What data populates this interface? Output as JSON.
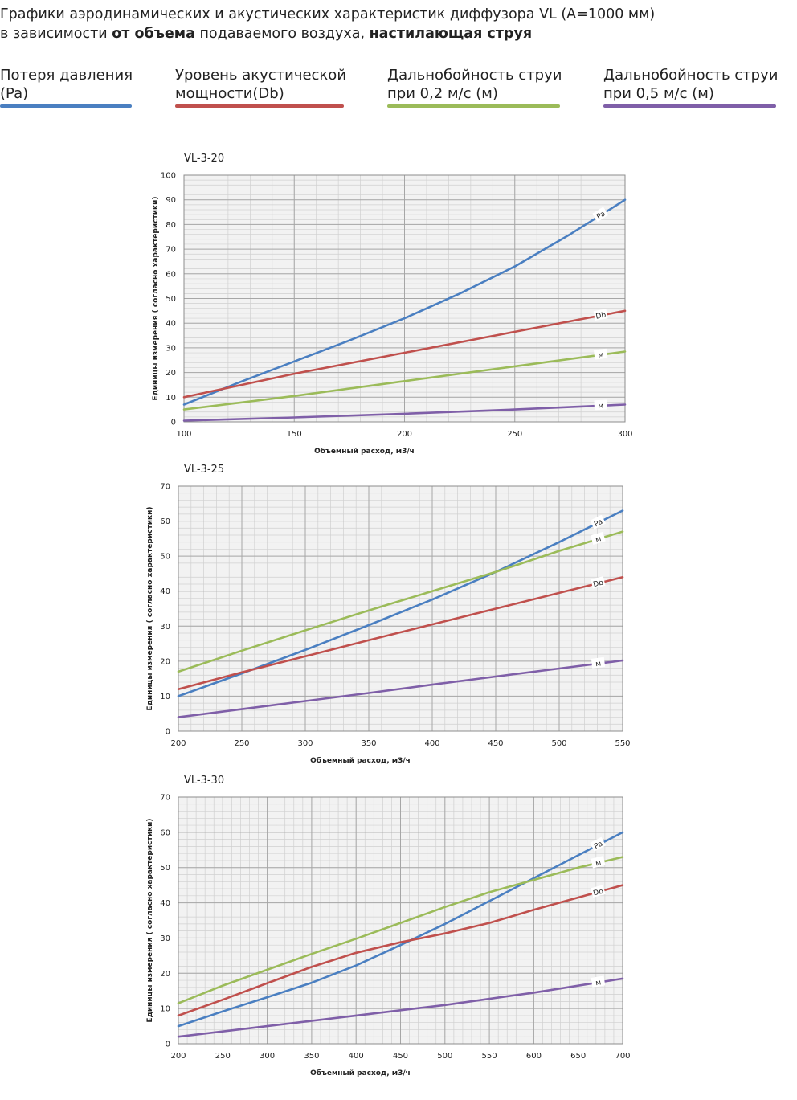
{
  "header": {
    "line1": "Графики аэродинамических и акустических характеристик  диффузора VL (А=1000 мм)",
    "line2_a": "в зависимости ",
    "line2_b": "от объема",
    "line2_c": " подаваемого воздуха, ",
    "line2_d": "настилающая струя"
  },
  "legend": [
    {
      "label": "Потеря давления\n(Pa)",
      "color": "#4a7fc1"
    },
    {
      "label": "Уровень акустической\nмощности(Db)",
      "color": "#c0504d"
    },
    {
      "label": "Дальнобойность струи\nпри 0,2 м/с (м)",
      "color": "#9bbb59"
    },
    {
      "label": "Дальнобойность струи\nпри 0,5 м/с (м)",
      "color": "#7f5fa8"
    }
  ],
  "colors": {
    "pa": "#4a7fc1",
    "db": "#c0504d",
    "m02": "#9bbb59",
    "m05": "#7f5fa8",
    "grid_major": "#a6a6a6",
    "grid_minor": "#d0d0d0",
    "plot_bg": "#f2f2f2"
  },
  "chart_data": [
    {
      "type": "line",
      "title": "VL-3-20",
      "xlabel": "Объемный расход, м3/ч",
      "ylabel": "Единицы измерения ( согласно характеристики)",
      "xlim": [
        100,
        300
      ],
      "ylim": [
        0,
        100
      ],
      "xticks": [
        100,
        150,
        200,
        250,
        300
      ],
      "yticks": [
        0,
        10,
        20,
        30,
        40,
        50,
        60,
        70,
        80,
        90,
        100
      ],
      "x_minor_step": 10,
      "y_minor_step": 2,
      "series": [
        {
          "name": "Pa",
          "key": "pa",
          "x": [
            100,
            125,
            150,
            175,
            200,
            225,
            250,
            275,
            300
          ],
          "y": [
            7,
            16,
            24.5,
            33,
            42,
            52,
            63,
            76,
            90
          ]
        },
        {
          "name": "Db",
          "key": "db",
          "x": [
            100,
            150,
            200,
            250,
            300
          ],
          "y": [
            10,
            19.5,
            28,
            36.5,
            45
          ]
        },
        {
          "name": "м",
          "key": "m02",
          "x": [
            100,
            150,
            200,
            250,
            300
          ],
          "y": [
            5,
            10.5,
            16.5,
            22.5,
            28.5
          ]
        },
        {
          "name": "м",
          "key": "m05",
          "x": [
            100,
            150,
            200,
            250,
            300
          ],
          "y": [
            0.5,
            1.8,
            3.3,
            5,
            7
          ]
        }
      ]
    },
    {
      "type": "line",
      "title": "VL-3-25",
      "xlabel": "Объемный расход, м3/ч",
      "ylabel": "Единицы измерения ( согласно характеристики)",
      "xlim": [
        200,
        550
      ],
      "ylim": [
        0,
        70
      ],
      "xticks": [
        200,
        250,
        300,
        350,
        400,
        450,
        500,
        550
      ],
      "yticks": [
        0,
        10,
        20,
        30,
        40,
        50,
        60,
        70
      ],
      "x_minor_step": 10,
      "y_minor_step": 2,
      "series": [
        {
          "name": "Pa",
          "key": "pa",
          "x": [
            200,
            250,
            300,
            350,
            400,
            450,
            500,
            550
          ],
          "y": [
            10,
            16.5,
            23.2,
            30.3,
            37.6,
            45.5,
            54,
            63
          ]
        },
        {
          "name": "м",
          "key": "m02",
          "x": [
            200,
            250,
            300,
            350,
            400,
            450,
            500,
            550
          ],
          "y": [
            17,
            23,
            28.8,
            34.5,
            40,
            45.5,
            51.5,
            57
          ]
        },
        {
          "name": "Db",
          "key": "db",
          "x": [
            200,
            250,
            300,
            350,
            400,
            450,
            500,
            550
          ],
          "y": [
            12,
            16.8,
            21.4,
            26,
            30.5,
            35,
            39.5,
            44
          ]
        },
        {
          "name": "м",
          "key": "m05",
          "x": [
            200,
            250,
            300,
            350,
            400,
            450,
            500,
            550
          ],
          "y": [
            4,
            6.3,
            8.6,
            10.9,
            13.3,
            15.6,
            17.9,
            20.2
          ]
        }
      ]
    },
    {
      "type": "line",
      "title": "VL-3-30",
      "xlabel": "Объемный расход, м3/ч",
      "ylabel": "Единицы измерения ( согласно характеристики)",
      "xlim": [
        200,
        700
      ],
      "ylim": [
        0,
        70
      ],
      "xticks": [
        200,
        250,
        300,
        350,
        400,
        450,
        500,
        550,
        600,
        650,
        700
      ],
      "yticks": [
        0,
        10,
        20,
        30,
        40,
        50,
        60,
        70
      ],
      "x_minor_step": 10,
      "y_minor_step": 2,
      "series": [
        {
          "name": "Pa",
          "key": "pa",
          "x": [
            200,
            250,
            300,
            350,
            400,
            450,
            500,
            550,
            600,
            650,
            700
          ],
          "y": [
            5,
            9.2,
            13.2,
            17.3,
            22.2,
            28,
            34,
            40.5,
            47,
            53.5,
            60
          ]
        },
        {
          "name": "м",
          "key": "m02",
          "x": [
            200,
            250,
            300,
            350,
            400,
            450,
            500,
            550,
            600,
            650,
            700
          ],
          "y": [
            11.5,
            16.5,
            21,
            25.5,
            29.8,
            34.3,
            38.8,
            43,
            46.5,
            50,
            53
          ]
        },
        {
          "name": "Db",
          "key": "db",
          "x": [
            200,
            250,
            300,
            350,
            400,
            450,
            500,
            550,
            600,
            650,
            700
          ],
          "y": [
            8,
            12.5,
            17.2,
            21.8,
            25.8,
            28.8,
            31.3,
            34.3,
            38,
            41.5,
            45
          ]
        },
        {
          "name": "м",
          "key": "m05",
          "x": [
            200,
            300,
            400,
            500,
            600,
            700
          ],
          "y": [
            2,
            5,
            8,
            11,
            14.5,
            18.5
          ]
        }
      ]
    }
  ]
}
